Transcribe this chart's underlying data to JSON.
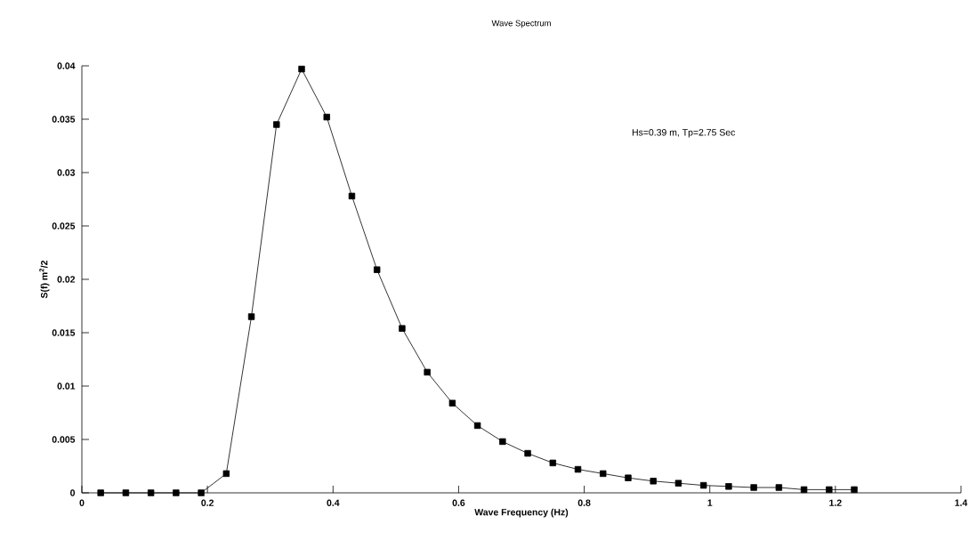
{
  "chart_data": {
    "type": "line",
    "title": "Wave Spectrum",
    "xlabel": "Wave Frequency (Hz)",
    "ylabel": "S(f) m$^{2}$/2",
    "annotations": [
      "Hs=0.39 m, Tp=2.75 Sec"
    ],
    "x": [
      0.03,
      0.07,
      0.11,
      0.15,
      0.19,
      0.23,
      0.27,
      0.31,
      0.35,
      0.39,
      0.43,
      0.47,
      0.51,
      0.55,
      0.59,
      0.63,
      0.67,
      0.71,
      0.75,
      0.79,
      0.83,
      0.87,
      0.91,
      0.95,
      0.99,
      1.03,
      1.07,
      1.11,
      1.15,
      1.19,
      1.23
    ],
    "series": [
      {
        "color": "#000000",
        "values": [
          0,
          0,
          0,
          0,
          0,
          0.0018,
          0.0165,
          0.0345,
          0.0397,
          0.0352,
          0.0278,
          0.0209,
          0.0154,
          0.0113,
          0.0084,
          0.0063,
          0.0048,
          0.0037,
          0.0028,
          0.0022,
          0.0018,
          0.0014,
          0.0011,
          0.0009,
          0.0007,
          0.0006,
          0.0005,
          0.0005,
          0.0003,
          0.0003,
          0.0003
        ]
      }
    ],
    "xlim": [
      0,
      1.4
    ],
    "ylim": [
      0,
      0.04
    ],
    "xticks": [
      0,
      0.2,
      0.4,
      0.6,
      0.8,
      1,
      1.2,
      1.4
    ],
    "yticks": [
      0,
      0.005,
      0.01,
      0.015,
      0.02,
      0.025,
      0.03,
      0.035,
      0.04
    ],
    "grid": false,
    "marker": "square",
    "line_style": "solid"
  }
}
